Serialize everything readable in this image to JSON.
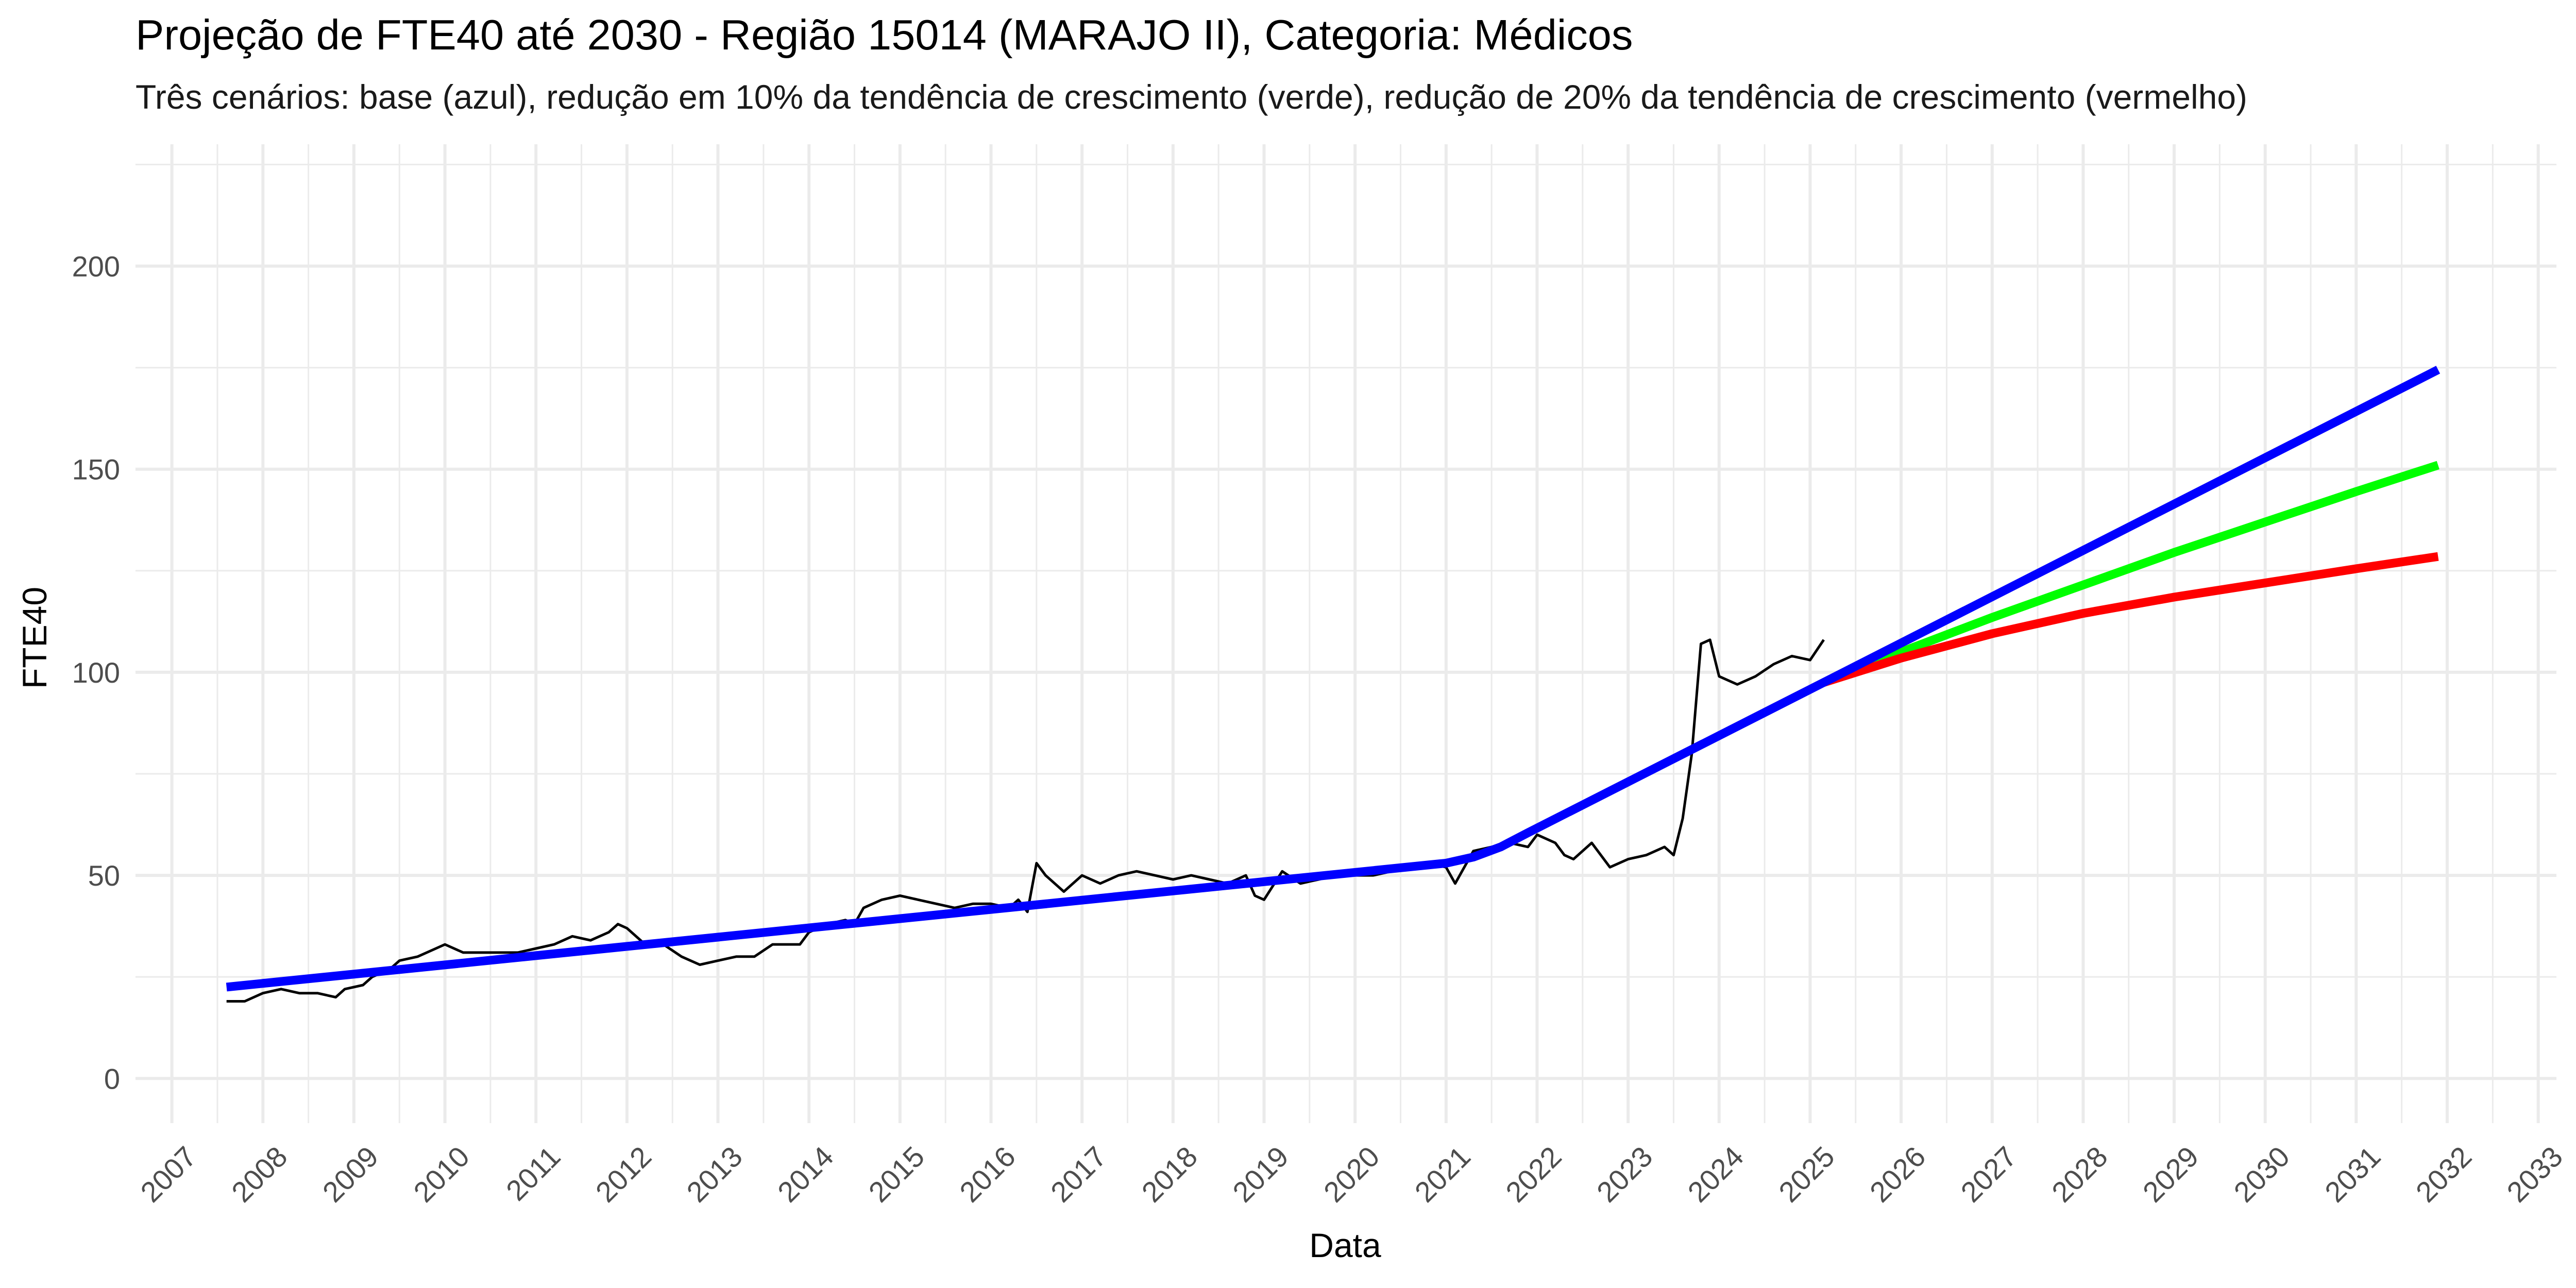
{
  "chart_data": {
    "type": "line",
    "title": "Projeção de FTE40 até 2030 - Região 15014 (MARAJO II), Categoria: Médicos",
    "subtitle": "Três cenários: base (azul), redução em 10% da tendência de crescimento (verde), redução de 20% da tendência de crescimento (vermelho)",
    "xlabel": "Data",
    "ylabel": "FTE40",
    "xlim": [
      2006.6,
      2033.2
    ],
    "ylim": [
      -11,
      230
    ],
    "grid": true,
    "legend": "none",
    "x_ticks": [
      "2007",
      "2008",
      "2009",
      "2010",
      "2011",
      "2012",
      "2013",
      "2014",
      "2015",
      "2016",
      "2017",
      "2018",
      "2019",
      "2020",
      "2021",
      "2022",
      "2023",
      "2024",
      "2025",
      "2026",
      "2027",
      "2028",
      "2029",
      "2030",
      "2031",
      "2032",
      "2033"
    ],
    "y_ticks": [
      "0",
      "50",
      "100",
      "150",
      "200"
    ],
    "colors": {
      "observed": "#000000",
      "base": "#0000ff",
      "reduction_10": "#00ff00",
      "reduction_20": "#ff0000",
      "grid": "#ebebeb"
    },
    "series": [
      {
        "color": "#000000",
        "x": [
          2007.6,
          2007.8,
          2008.0,
          2008.2,
          2008.4,
          2008.6,
          2008.8,
          2008.9,
          2009.1,
          2009.2,
          2009.4,
          2009.5,
          2009.7,
          2009.9,
          2010.0,
          2010.2,
          2010.4,
          2010.6,
          2010.8,
          2011.0,
          2011.2,
          2011.4,
          2011.6,
          2011.8,
          2011.9,
          2012.0,
          2012.2,
          2012.4,
          2012.6,
          2012.8,
          2013.0,
          2013.2,
          2013.3,
          2013.4,
          2013.6,
          2013.8,
          2013.9,
          2014.0,
          2014.2,
          2014.4,
          2014.5,
          2014.6,
          2014.8,
          2015.0,
          2015.2,
          2015.4,
          2015.6,
          2015.8,
          2016.0,
          2016.2,
          2016.3,
          2016.4,
          2016.5,
          2016.6,
          2016.8,
          2017.0,
          2017.2,
          2017.4,
          2017.6,
          2017.8,
          2018.0,
          2018.2,
          2018.4,
          2018.6,
          2018.8,
          2018.9,
          2019.0,
          2019.2,
          2019.4,
          2019.6,
          2019.8,
          2020.0,
          2020.2,
          2020.4,
          2020.6,
          2020.8,
          2021.0,
          2021.1,
          2021.3,
          2021.5,
          2021.7,
          2021.9,
          2022.0,
          2022.2,
          2022.3,
          2022.4,
          2022.6,
          2022.8,
          2023.0,
          2023.2,
          2023.4,
          2023.5,
          2023.6,
          2023.7,
          2023.8,
          2023.9,
          2024.0,
          2024.2,
          2024.4,
          2024.6,
          2024.8,
          2025.0,
          2025.15
        ],
        "values": [
          19,
          19,
          21,
          22,
          21,
          21,
          20,
          22,
          23,
          25,
          27,
          29,
          30,
          32,
          33,
          31,
          31,
          31,
          31,
          32,
          33,
          35,
          34,
          36,
          38,
          37,
          33,
          33,
          30,
          28,
          29,
          30,
          30,
          30,
          33,
          33,
          33,
          36,
          38,
          39,
          38,
          42,
          44,
          45,
          44,
          43,
          42,
          43,
          43,
          42,
          44,
          41,
          53,
          50,
          46,
          50,
          48,
          50,
          51,
          50,
          49,
          50,
          49,
          48,
          50,
          45,
          44,
          51,
          48,
          49,
          50,
          50,
          50,
          51,
          52,
          53,
          52,
          48,
          56,
          57,
          58,
          57,
          60,
          58,
          55,
          54,
          58,
          52,
          54,
          55,
          57,
          55,
          64,
          80,
          107,
          108,
          99,
          97,
          99,
          102,
          104,
          103,
          108
        ]
      },
      {
        "color": "#0000ff",
        "x": [
          2007.6,
          2021.0,
          2021.3,
          2021.6,
          2021.9,
          2025.15,
          2031.9
        ],
        "values": [
          22.5,
          53,
          54.5,
          57,
          60.5,
          97.5,
          174.5
        ]
      },
      {
        "color": "#00ff00",
        "x": [
          2025.15,
          2026.0,
          2027.0,
          2028.0,
          2029.0,
          2030.0,
          2031.0,
          2031.9
        ],
        "values": [
          97.5,
          105,
          113.5,
          121.5,
          129.5,
          137,
          144.5,
          151
        ]
      },
      {
        "color": "#ff0000",
        "x": [
          2025.15,
          2026.0,
          2027.0,
          2028.0,
          2029.0,
          2030.0,
          2031.0,
          2031.9
        ],
        "values": [
          97.5,
          103.5,
          109.5,
          114.5,
          118.5,
          122,
          125.5,
          128.5
        ]
      }
    ]
  }
}
